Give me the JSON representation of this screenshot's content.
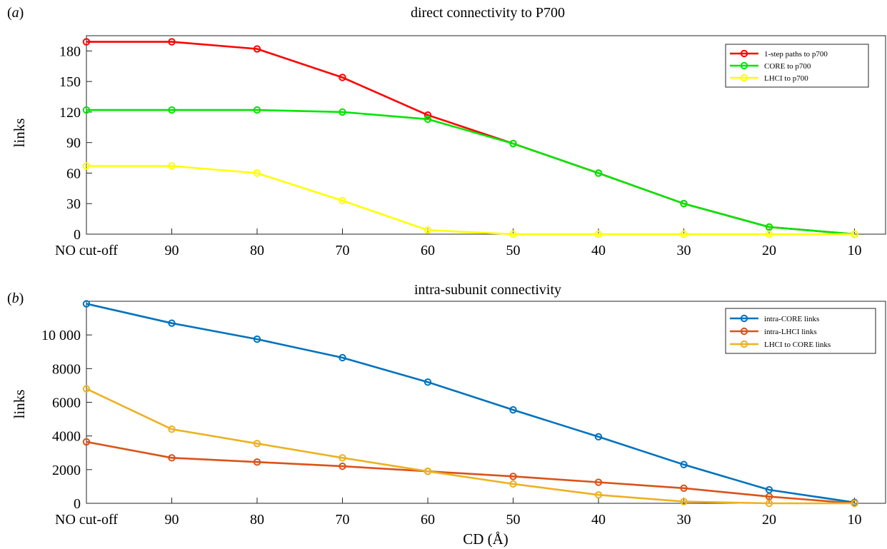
{
  "chart_data": [
    {
      "type": "line",
      "panel_letter": "a",
      "title": "direct connectivity to P700",
      "xlabel": "",
      "ylabel": "links",
      "categories": [
        "NO cut-off",
        "90",
        "80",
        "70",
        "60",
        "50",
        "40",
        "30",
        "20",
        "10"
      ],
      "ylim": [
        0,
        195
      ],
      "yticks": [
        0,
        30,
        60,
        90,
        120,
        150,
        180
      ],
      "ytick_labels": [
        "0",
        "30",
        "60",
        "90",
        "120",
        "150",
        "180"
      ],
      "grid": false,
      "legend_position": "top-right",
      "series": [
        {
          "name": "1-step paths to p700",
          "color": "#ff0000",
          "values": [
            189,
            189,
            182,
            154,
            117,
            89,
            60,
            30,
            7,
            0
          ]
        },
        {
          "name": "CORE to p700",
          "color": "#00e600",
          "values": [
            122,
            122,
            122,
            120,
            113,
            89,
            60,
            30,
            7,
            0
          ]
        },
        {
          "name": "LHCI to p700",
          "color": "#ffff00",
          "values": [
            67,
            67,
            60,
            33,
            4,
            0,
            0,
            0,
            0,
            0
          ]
        }
      ]
    },
    {
      "type": "line",
      "panel_letter": "b",
      "title": "intra-subunit connectivity",
      "xlabel": "CD (Å)",
      "ylabel": "links",
      "categories": [
        "NO cut-off",
        "90",
        "80",
        "70",
        "60",
        "50",
        "40",
        "30",
        "20",
        "10"
      ],
      "ylim": [
        0,
        12000
      ],
      "yticks": [
        0,
        2000,
        4000,
        6000,
        8000,
        10000
      ],
      "ytick_labels": [
        "0",
        "2000",
        "4000",
        "6000",
        "8000",
        "10 000"
      ],
      "grid": false,
      "legend_position": "top-right",
      "series": [
        {
          "name": "intra-CORE links",
          "color": "#0072bd",
          "values": [
            11850,
            10700,
            9750,
            8650,
            7200,
            5550,
            3950,
            2300,
            800,
            50
          ]
        },
        {
          "name": "intra-LHCI links",
          "color": "#d95319",
          "values": [
            3650,
            2700,
            2450,
            2200,
            1900,
            1600,
            1250,
            900,
            400,
            0
          ]
        },
        {
          "name": "LHCI to CORE links",
          "color": "#edb120",
          "values": [
            6800,
            4400,
            3550,
            2700,
            1900,
            1150,
            500,
            100,
            0,
            0
          ]
        }
      ]
    }
  ]
}
